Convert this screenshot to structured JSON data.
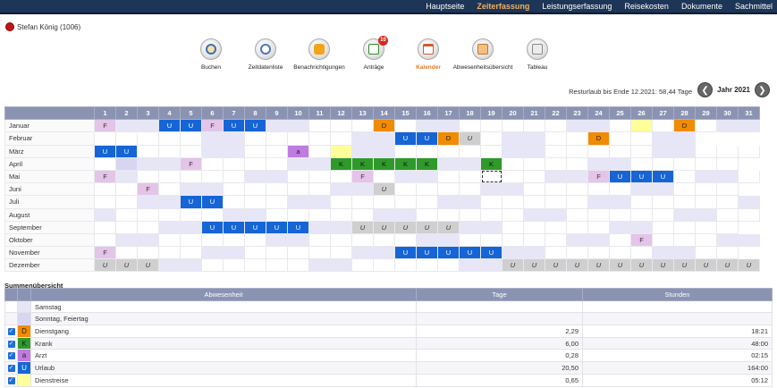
{
  "nav": [
    "Hauptseite",
    "Zeiterfassung",
    "Leistungserfassung",
    "Reisekosten",
    "Dokumente",
    "Sachmittel"
  ],
  "nav_active": 1,
  "user": {
    "name": "Stefan König (1006)"
  },
  "toolbar": [
    {
      "label": "Buchen",
      "icon": "magnifier-clock-icon"
    },
    {
      "label": "Zeitdatenliste",
      "icon": "clock-icon"
    },
    {
      "label": "Benachrichtigungen",
      "icon": "notification-icon"
    },
    {
      "label": "Anträge",
      "icon": "checklist-icon",
      "badge": "10"
    },
    {
      "label": "Kalender",
      "icon": "calendar-icon",
      "active": true
    },
    {
      "label": "Abwesenheitsübersicht",
      "icon": "calendar-people-icon"
    },
    {
      "label": "Tableau",
      "icon": "clock-board-icon"
    }
  ],
  "rest_text": "Resturlaub bis Ende 12.2021: 58,44 Tage",
  "year_label": "Jahr 2021",
  "calendar": {
    "days": [
      "1",
      "2",
      "3",
      "4",
      "5",
      "6",
      "7",
      "8",
      "9",
      "10",
      "11",
      "12",
      "13",
      "14",
      "15",
      "16",
      "17",
      "18",
      "19",
      "20",
      "21",
      "22",
      "23",
      "24",
      "25",
      "26",
      "27",
      "28",
      "29",
      "30",
      "31"
    ],
    "months": [
      {
        "name": "Januar",
        "days_in_month": 31,
        "weekends": [
          2,
          3,
          9,
          10,
          16,
          17,
          23,
          24,
          30,
          31
        ],
        "holidays": [
          1,
          6
        ],
        "marks": [
          [
            1,
            "F"
          ],
          [
            4,
            "U"
          ],
          [
            5,
            "U"
          ],
          [
            6,
            "F"
          ],
          [
            7,
            "U"
          ],
          [
            8,
            "U"
          ],
          [
            14,
            "D"
          ],
          [
            26,
            "y"
          ],
          [
            28,
            "D"
          ]
        ]
      },
      {
        "name": "Februar",
        "days_in_month": 28,
        "weekends": [
          6,
          7,
          13,
          14,
          20,
          21,
          27,
          28
        ],
        "holidays": [],
        "marks": [
          [
            15,
            "U"
          ],
          [
            16,
            "U"
          ],
          [
            17,
            "D"
          ],
          [
            18,
            "u"
          ],
          [
            24,
            "D"
          ]
        ]
      },
      {
        "name": "März",
        "days_in_month": 31,
        "weekends": [
          6,
          7,
          13,
          14,
          20,
          21,
          27,
          28
        ],
        "holidays": [],
        "marks": [
          [
            1,
            "U"
          ],
          [
            2,
            "U"
          ],
          [
            10,
            "a"
          ],
          [
            12,
            "y"
          ]
        ]
      },
      {
        "name": "April",
        "days_in_month": 30,
        "weekends": [
          3,
          4,
          10,
          11,
          17,
          18,
          24,
          25
        ],
        "holidays": [
          2,
          5
        ],
        "marks": [
          [
            5,
            "F"
          ],
          [
            12,
            "K"
          ],
          [
            13,
            "K"
          ],
          [
            14,
            "K"
          ],
          [
            15,
            "K"
          ],
          [
            16,
            "K"
          ],
          [
            19,
            "K"
          ]
        ]
      },
      {
        "name": "Mai",
        "days_in_month": 31,
        "weekends": [
          1,
          2,
          8,
          9,
          15,
          16,
          22,
          23,
          29,
          30
        ],
        "holidays": [
          1,
          13,
          24
        ],
        "marks": [
          [
            1,
            "F"
          ],
          [
            13,
            "F"
          ],
          [
            24,
            "F"
          ],
          [
            25,
            "U"
          ],
          [
            26,
            "U"
          ],
          [
            27,
            "U"
          ]
        ],
        "today": 19
      },
      {
        "name": "Juni",
        "days_in_month": 30,
        "weekends": [
          5,
          6,
          12,
          13,
          19,
          20,
          26,
          27
        ],
        "holidays": [
          3
        ],
        "marks": [
          [
            3,
            "F"
          ],
          [
            14,
            "u"
          ]
        ]
      },
      {
        "name": "Juli",
        "days_in_month": 31,
        "weekends": [
          3,
          4,
          10,
          11,
          17,
          18,
          24,
          25,
          31
        ],
        "holidays": [],
        "marks": [
          [
            5,
            "U"
          ],
          [
            6,
            "U"
          ]
        ]
      },
      {
        "name": "August",
        "days_in_month": 31,
        "weekends": [
          1,
          7,
          8,
          14,
          15,
          21,
          22,
          28,
          29
        ],
        "holidays": [],
        "marks": []
      },
      {
        "name": "September",
        "days_in_month": 30,
        "weekends": [
          4,
          5,
          11,
          12,
          18,
          19,
          25,
          26
        ],
        "holidays": [],
        "marks": [
          [
            6,
            "U"
          ],
          [
            7,
            "U"
          ],
          [
            8,
            "U"
          ],
          [
            9,
            "U"
          ],
          [
            10,
            "U"
          ],
          [
            13,
            "u"
          ],
          [
            14,
            "u"
          ],
          [
            15,
            "u"
          ],
          [
            16,
            "u"
          ],
          [
            17,
            "u"
          ]
        ]
      },
      {
        "name": "Oktober",
        "days_in_month": 31,
        "weekends": [
          2,
          3,
          9,
          10,
          16,
          17,
          23,
          24,
          30,
          31
        ],
        "holidays": [],
        "marks": [
          [
            26,
            "F"
          ]
        ]
      },
      {
        "name": "November",
        "days_in_month": 30,
        "weekends": [
          6,
          7,
          13,
          14,
          20,
          21,
          27,
          28
        ],
        "holidays": [
          1
        ],
        "marks": [
          [
            1,
            "F"
          ],
          [
            15,
            "U"
          ],
          [
            16,
            "U"
          ],
          [
            17,
            "U"
          ],
          [
            18,
            "U"
          ],
          [
            19,
            "U"
          ]
        ]
      },
      {
        "name": "Dezember",
        "days_in_month": 31,
        "weekends": [
          4,
          5,
          11,
          12,
          18,
          19,
          25,
          26
        ],
        "holidays": [],
        "marks": [
          [
            1,
            "u"
          ],
          [
            2,
            "u"
          ],
          [
            3,
            "u"
          ],
          [
            20,
            "u"
          ],
          [
            21,
            "u"
          ],
          [
            22,
            "u"
          ],
          [
            23,
            "u"
          ],
          [
            24,
            "u"
          ],
          [
            25,
            "u"
          ],
          [
            26,
            "u"
          ],
          [
            27,
            "u"
          ],
          [
            28,
            "u"
          ],
          [
            29,
            "u"
          ],
          [
            30,
            "u"
          ],
          [
            31,
            "u"
          ]
        ]
      }
    ]
  },
  "mark_text": {
    "F": "F",
    "U": "U",
    "D": "D",
    "K": "K",
    "a": "a",
    "u": "U",
    "y": ""
  },
  "summary": {
    "title": "Summenübersicht",
    "headers": [
      "Abwesenheit",
      "Tage",
      "Stunden"
    ],
    "rows": [
      {
        "check": false,
        "code": "",
        "swatch": "#e6e6f7",
        "name": "Samstag",
        "days": "",
        "hours": ""
      },
      {
        "check": false,
        "code": "",
        "swatch": "#d6d6f2",
        "name": "Sonntag, Feiertag",
        "days": "",
        "hours": ""
      },
      {
        "check": true,
        "code": "D",
        "swatch": "#f18b00",
        "name": "Dienstgang",
        "days": "2,29",
        "hours": "18:21"
      },
      {
        "check": true,
        "code": "K",
        "swatch": "#2f9a2a",
        "name": "Krank",
        "days": "6,00",
        "hours": "48:00"
      },
      {
        "check": true,
        "code": "a",
        "swatch": "#c07be0",
        "name": "Arzt",
        "days": "0,28",
        "hours": "02:15"
      },
      {
        "check": true,
        "code": "U",
        "swatch": "#1565d6",
        "name": "Urlaub",
        "days": "20,50",
        "hours": "164:00"
      },
      {
        "check": true,
        "code": "",
        "swatch": "#ffff99",
        "name": "Dienstreise",
        "days": "0,65",
        "hours": "05:12"
      }
    ]
  }
}
